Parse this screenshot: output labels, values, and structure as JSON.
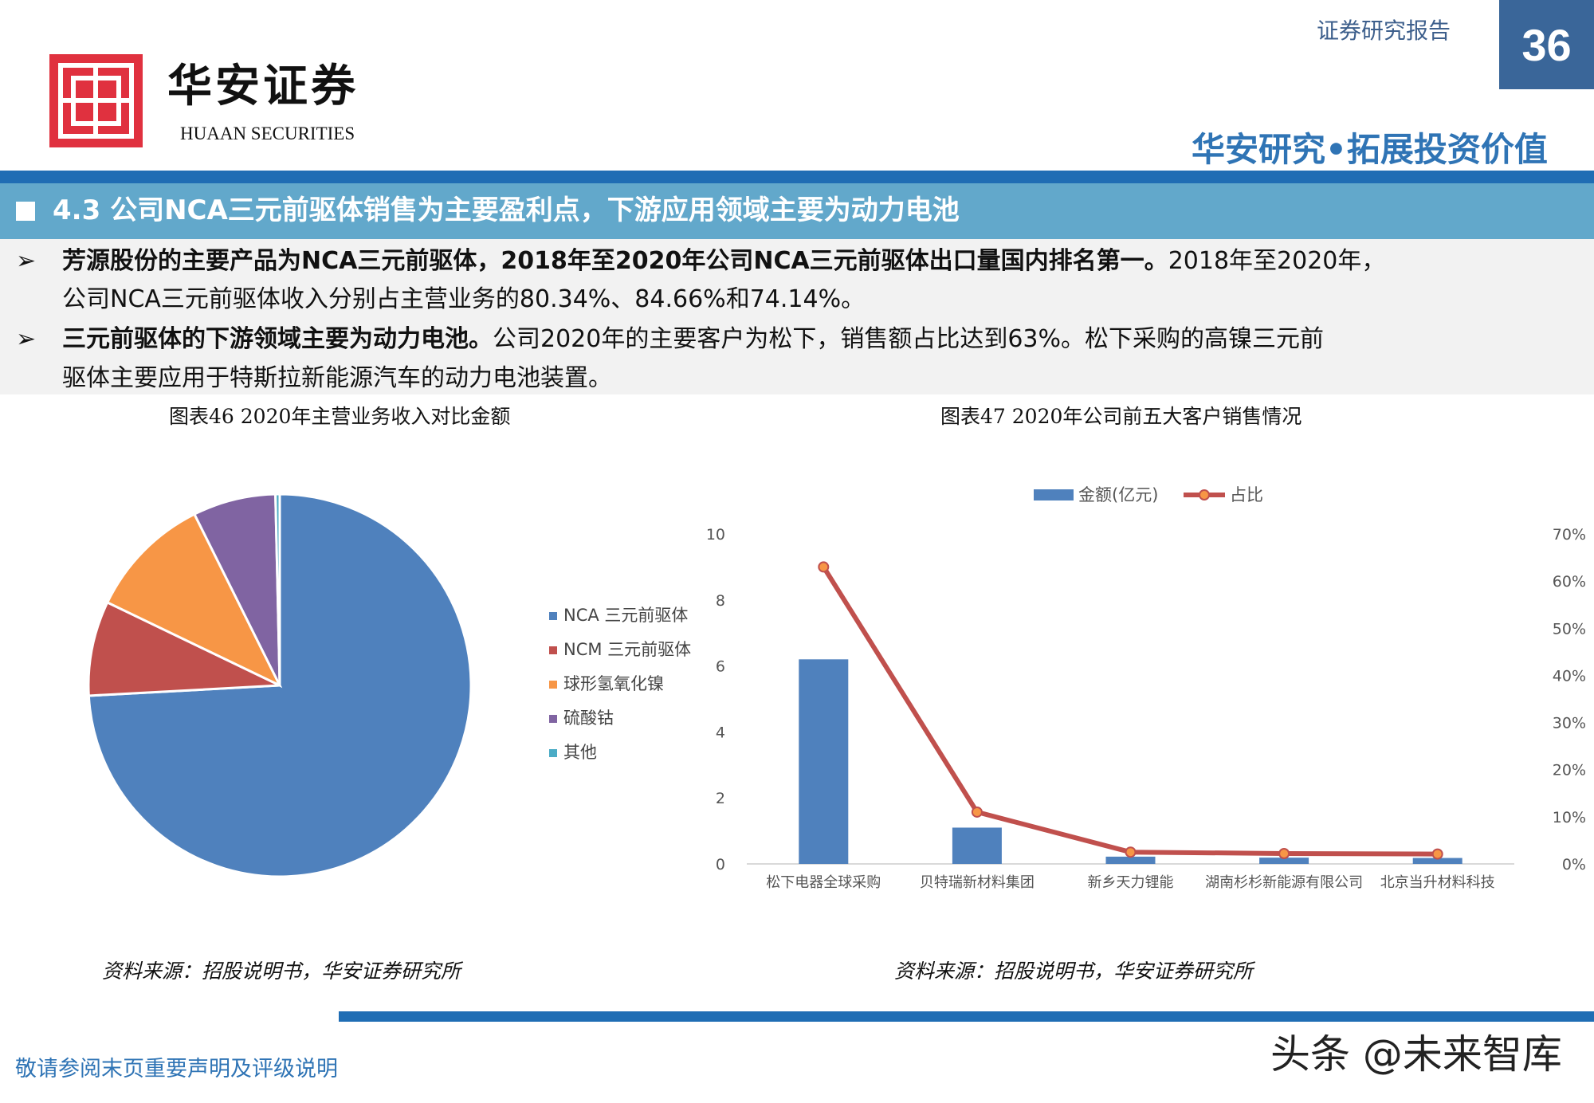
{
  "header": {
    "brand_cn": "华安证券",
    "brand_en": "HUAAN SECURITIES",
    "report_type": "证券研究报告",
    "page_number": "36",
    "slogan": "华安研究•拓展投资价值"
  },
  "section": {
    "title": "4.3 公司NCA三元前驱体销售为主要盈利点，下游应用领域主要为动力电池"
  },
  "bullets": [
    {
      "bold": "芳源股份的主要产品为NCA三元前驱体，2018年至2020年公司NCA三元前驱体出口量国内排名第一。",
      "text1": "2018年至2020年，",
      "text2": "公司NCA三元前驱体收入分别占主营业务的80.34%、84.66%和74.14%。"
    },
    {
      "bold": "三元前驱体的下游领域主要为动力电池。",
      "text1": "公司2020年的主要客户为松下，销售额占比达到63%。松下采购的高镍三元前",
      "text2": "驱体主要应用于特斯拉新能源汽车的动力电池装置。"
    }
  ],
  "chart_data": [
    {
      "type": "pie",
      "title": "图表46  2020年主营业务收入对比金额",
      "labels": [
        "NCA 三元前驱体",
        "NCM 三元前驱体",
        "球形氢氧化镍",
        "硫酸钴",
        "其他"
      ],
      "values": [
        74.14,
        8.0,
        10.5,
        7.0,
        0.36
      ],
      "colors": [
        "#4f81bd",
        "#c0504d",
        "#f79646",
        "#8064a2",
        "#4bacc6"
      ],
      "legend": "right",
      "source": "资料来源：招股说明书，华安证券研究所"
    },
    {
      "type": "bar+line",
      "title": "图表47  2020年公司前五大客户销售情况",
      "categories": [
        "松下电器全球采购",
        "贝特瑞新材料集团",
        "新乡天力锂能",
        "湖南杉杉新能源有限公司",
        "北京当升材料科技"
      ],
      "series": [
        {
          "name": "金额(亿元)",
          "type": "bar",
          "axis": "left",
          "color": "#4f81bd",
          "values": [
            6.2,
            1.1,
            0.22,
            0.19,
            0.18
          ]
        },
        {
          "name": "占比",
          "type": "line",
          "axis": "right",
          "color": "#c0504d",
          "marker_color": "#f79646",
          "values": [
            63,
            11,
            2.5,
            2.2,
            2.1
          ]
        }
      ],
      "y_left": {
        "range": [
          0,
          10
        ],
        "ticks": [
          "0",
          "2",
          "4",
          "6",
          "8",
          "10"
        ]
      },
      "y_right": {
        "range": [
          0,
          70
        ],
        "ticks": [
          "0%",
          "10%",
          "20%",
          "30%",
          "40%",
          "50%",
          "60%",
          "70%"
        ]
      },
      "legend": "top",
      "grid": false,
      "source": "资料来源：招股说明书，华安证券研究所"
    }
  ],
  "footer": {
    "disclaimer": "敬请参阅末页重要声明及评级说明",
    "watermark": "头条 @未来智库"
  }
}
